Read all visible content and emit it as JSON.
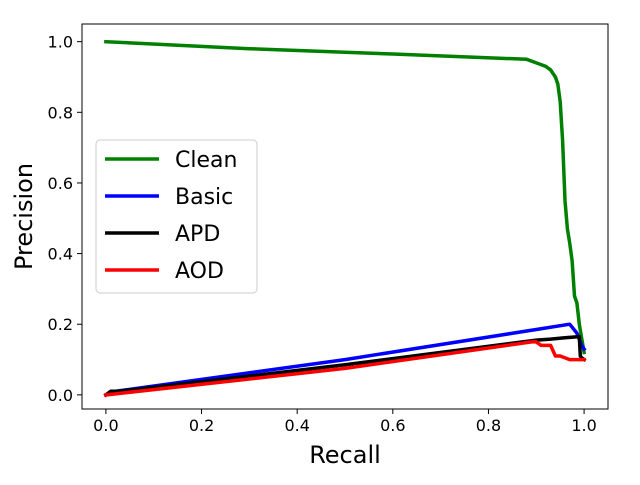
{
  "chart_data": {
    "type": "line",
    "title": "",
    "xlabel": "Recall",
    "ylabel": "Precision",
    "xlim": [
      -0.05,
      1.05
    ],
    "ylim": [
      -0.04,
      1.05
    ],
    "xticks": [
      "0.0",
      "0.2",
      "0.4",
      "0.6",
      "0.8",
      "1.0"
    ],
    "yticks": [
      "0.0",
      "0.2",
      "0.4",
      "0.6",
      "0.8",
      "1.0"
    ],
    "grid": false,
    "legend_position": "center-left",
    "series": [
      {
        "name": "Clean",
        "color": "#008000",
        "x": [
          0.0,
          0.3,
          0.6,
          0.88,
          0.9,
          0.92,
          0.93,
          0.94,
          0.945,
          0.95,
          0.955,
          0.96,
          0.965,
          0.97,
          0.975,
          0.98,
          0.985,
          0.99,
          0.995,
          1.0
        ],
        "y": [
          1.0,
          0.98,
          0.965,
          0.95,
          0.94,
          0.93,
          0.92,
          0.9,
          0.88,
          0.83,
          0.72,
          0.55,
          0.47,
          0.43,
          0.38,
          0.28,
          0.26,
          0.2,
          0.16,
          0.12
        ]
      },
      {
        "name": "Basic",
        "color": "#0000ff",
        "x": [
          0.0,
          0.02,
          0.5,
          0.9,
          0.97,
          0.985,
          0.995,
          1.0
        ],
        "y": [
          0.0,
          0.01,
          0.1,
          0.185,
          0.2,
          0.175,
          0.14,
          0.13
        ]
      },
      {
        "name": "APD",
        "color": "#000000",
        "x": [
          0.0,
          0.01,
          0.02,
          0.04,
          0.5,
          0.9,
          0.93,
          0.96,
          0.99,
          0.992,
          0.995,
          1.0
        ],
        "y": [
          0.0,
          0.01,
          0.01,
          0.012,
          0.085,
          0.155,
          0.158,
          0.162,
          0.165,
          0.11,
          0.105,
          0.1
        ]
      },
      {
        "name": "AOD",
        "color": "#ff0000",
        "x": [
          0.0,
          0.5,
          0.89,
          0.9,
          0.91,
          0.93,
          0.94,
          0.95,
          0.97,
          0.98,
          0.99,
          1.0
        ],
        "y": [
          0.0,
          0.075,
          0.15,
          0.15,
          0.14,
          0.14,
          0.11,
          0.11,
          0.1,
          0.1,
          0.1,
          0.1
        ]
      }
    ]
  }
}
